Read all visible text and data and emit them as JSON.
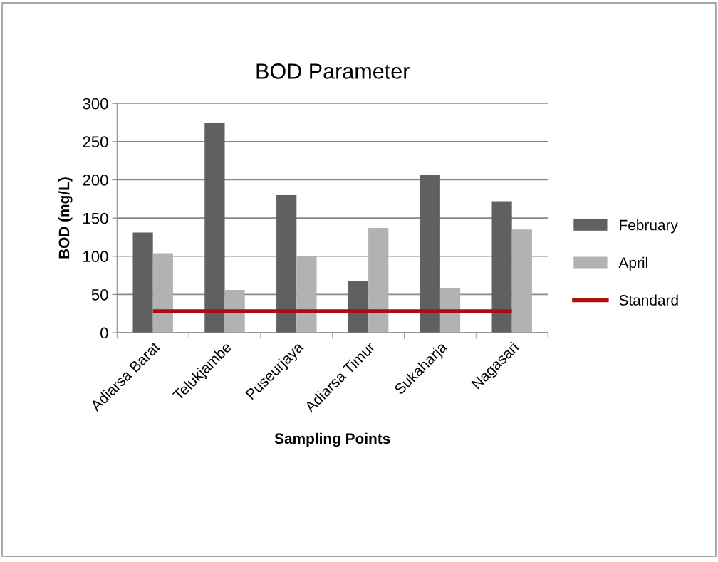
{
  "chart_data": {
    "type": "bar",
    "title": "BOD Parameter",
    "xlabel": "Sampling Points",
    "ylabel": "BOD (mg/L)",
    "categories": [
      "Adiarsa Barat",
      "Telukjambe",
      "Puseurjaya",
      "Adiarsa Timur",
      "Sukaharja",
      "Nagasari"
    ],
    "series": [
      {
        "name": "February",
        "color": "#606060",
        "values": [
          131,
          274,
          180,
          68,
          206,
          172
        ]
      },
      {
        "name": "April",
        "color": "#b2b2b2",
        "values": [
          104,
          56,
          100,
          137,
          58,
          135
        ]
      },
      {
        "name": "Standard",
        "type": "line",
        "color": "#a80f0f",
        "values": [
          28,
          28,
          28,
          28,
          28,
          28
        ]
      }
    ],
    "ylim": [
      0,
      300
    ],
    "yticks": [
      0,
      50,
      100,
      150,
      200,
      250,
      300
    ],
    "grid": "y",
    "legend": "right",
    "marker": "none",
    "line_style": "solid"
  }
}
